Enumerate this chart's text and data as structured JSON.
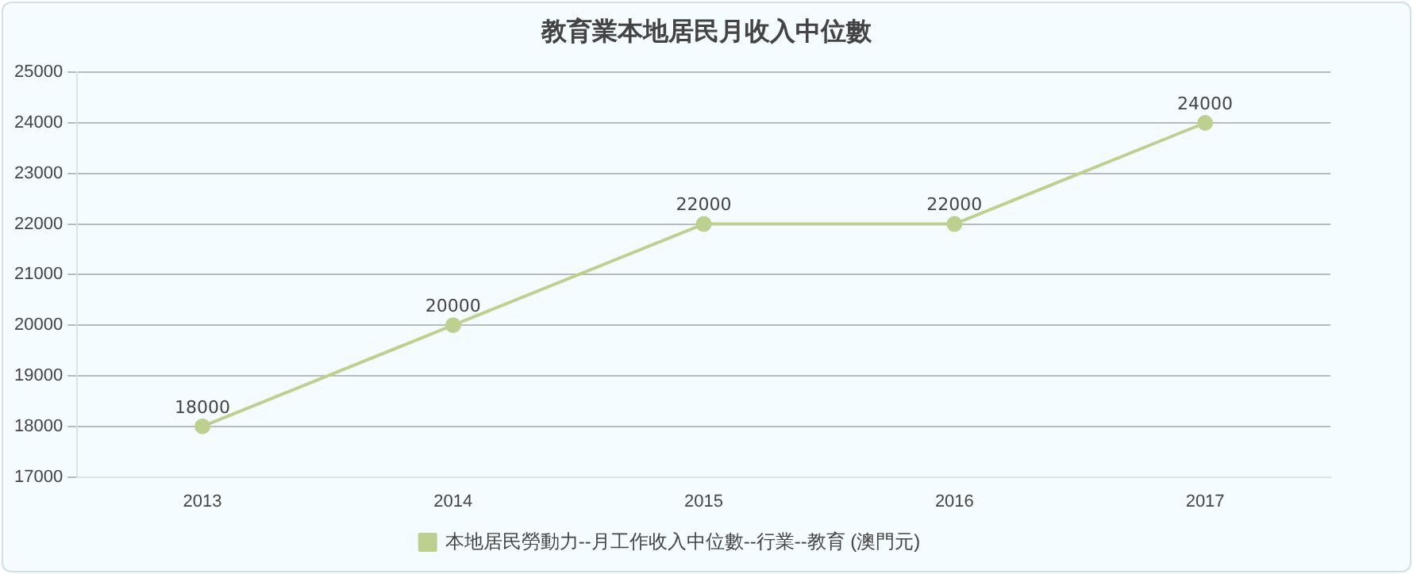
{
  "chart_data": {
    "type": "line",
    "title": "教育業本地居民月收入中位數",
    "categories": [
      "2013",
      "2014",
      "2015",
      "2016",
      "2017"
    ],
    "series": [
      {
        "name": "本地居民勞動力--月工作收入中位數--行業--教育 (澳門元)",
        "color": "#bcd18f",
        "values": [
          18000,
          20000,
          22000,
          22000,
          24000
        ]
      }
    ],
    "ylim": [
      17000,
      25000
    ],
    "yticks": [
      17000,
      18000,
      19000,
      20000,
      21000,
      22000,
      23000,
      24000,
      25000
    ],
    "grid": "y",
    "legend": "bottom",
    "marker": "circle",
    "line_style": "solid",
    "data_labels": true
  }
}
